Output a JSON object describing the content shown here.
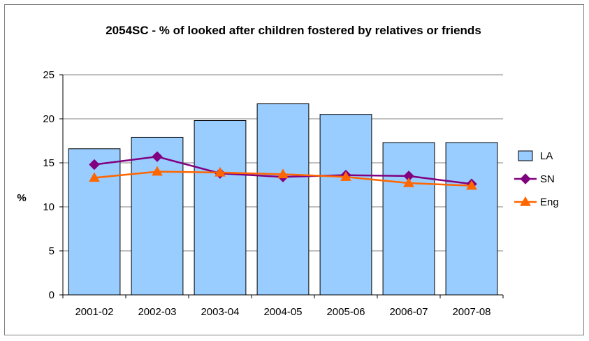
{
  "chart_data": {
    "type": "bar",
    "title": "2054SC - % of looked after children fostered by relatives or friends",
    "xlabel": "",
    "ylabel": "%",
    "categories": [
      "2001-02",
      "2002-03",
      "2003-04",
      "2004-05",
      "2005-06",
      "2006-07",
      "2007-08"
    ],
    "ylim": [
      0,
      25
    ],
    "yticks": [
      "0",
      "5",
      "10",
      "15",
      "20",
      "25"
    ],
    "grid": true,
    "legend_position": "right",
    "series": [
      {
        "name": "LA",
        "kind": "bar",
        "color": "#99ccff",
        "values": [
          16.6,
          17.9,
          19.8,
          21.7,
          20.5,
          17.3,
          17.3
        ]
      },
      {
        "name": "SN",
        "kind": "line",
        "marker": "diamond",
        "color": "#800080",
        "values": [
          14.8,
          15.7,
          13.8,
          13.4,
          13.6,
          13.5,
          12.6
        ]
      },
      {
        "name": "Eng",
        "kind": "line",
        "marker": "triangle",
        "color": "#ff6600",
        "values": [
          13.3,
          14.0,
          13.9,
          13.7,
          13.4,
          12.7,
          12.4
        ]
      }
    ]
  }
}
